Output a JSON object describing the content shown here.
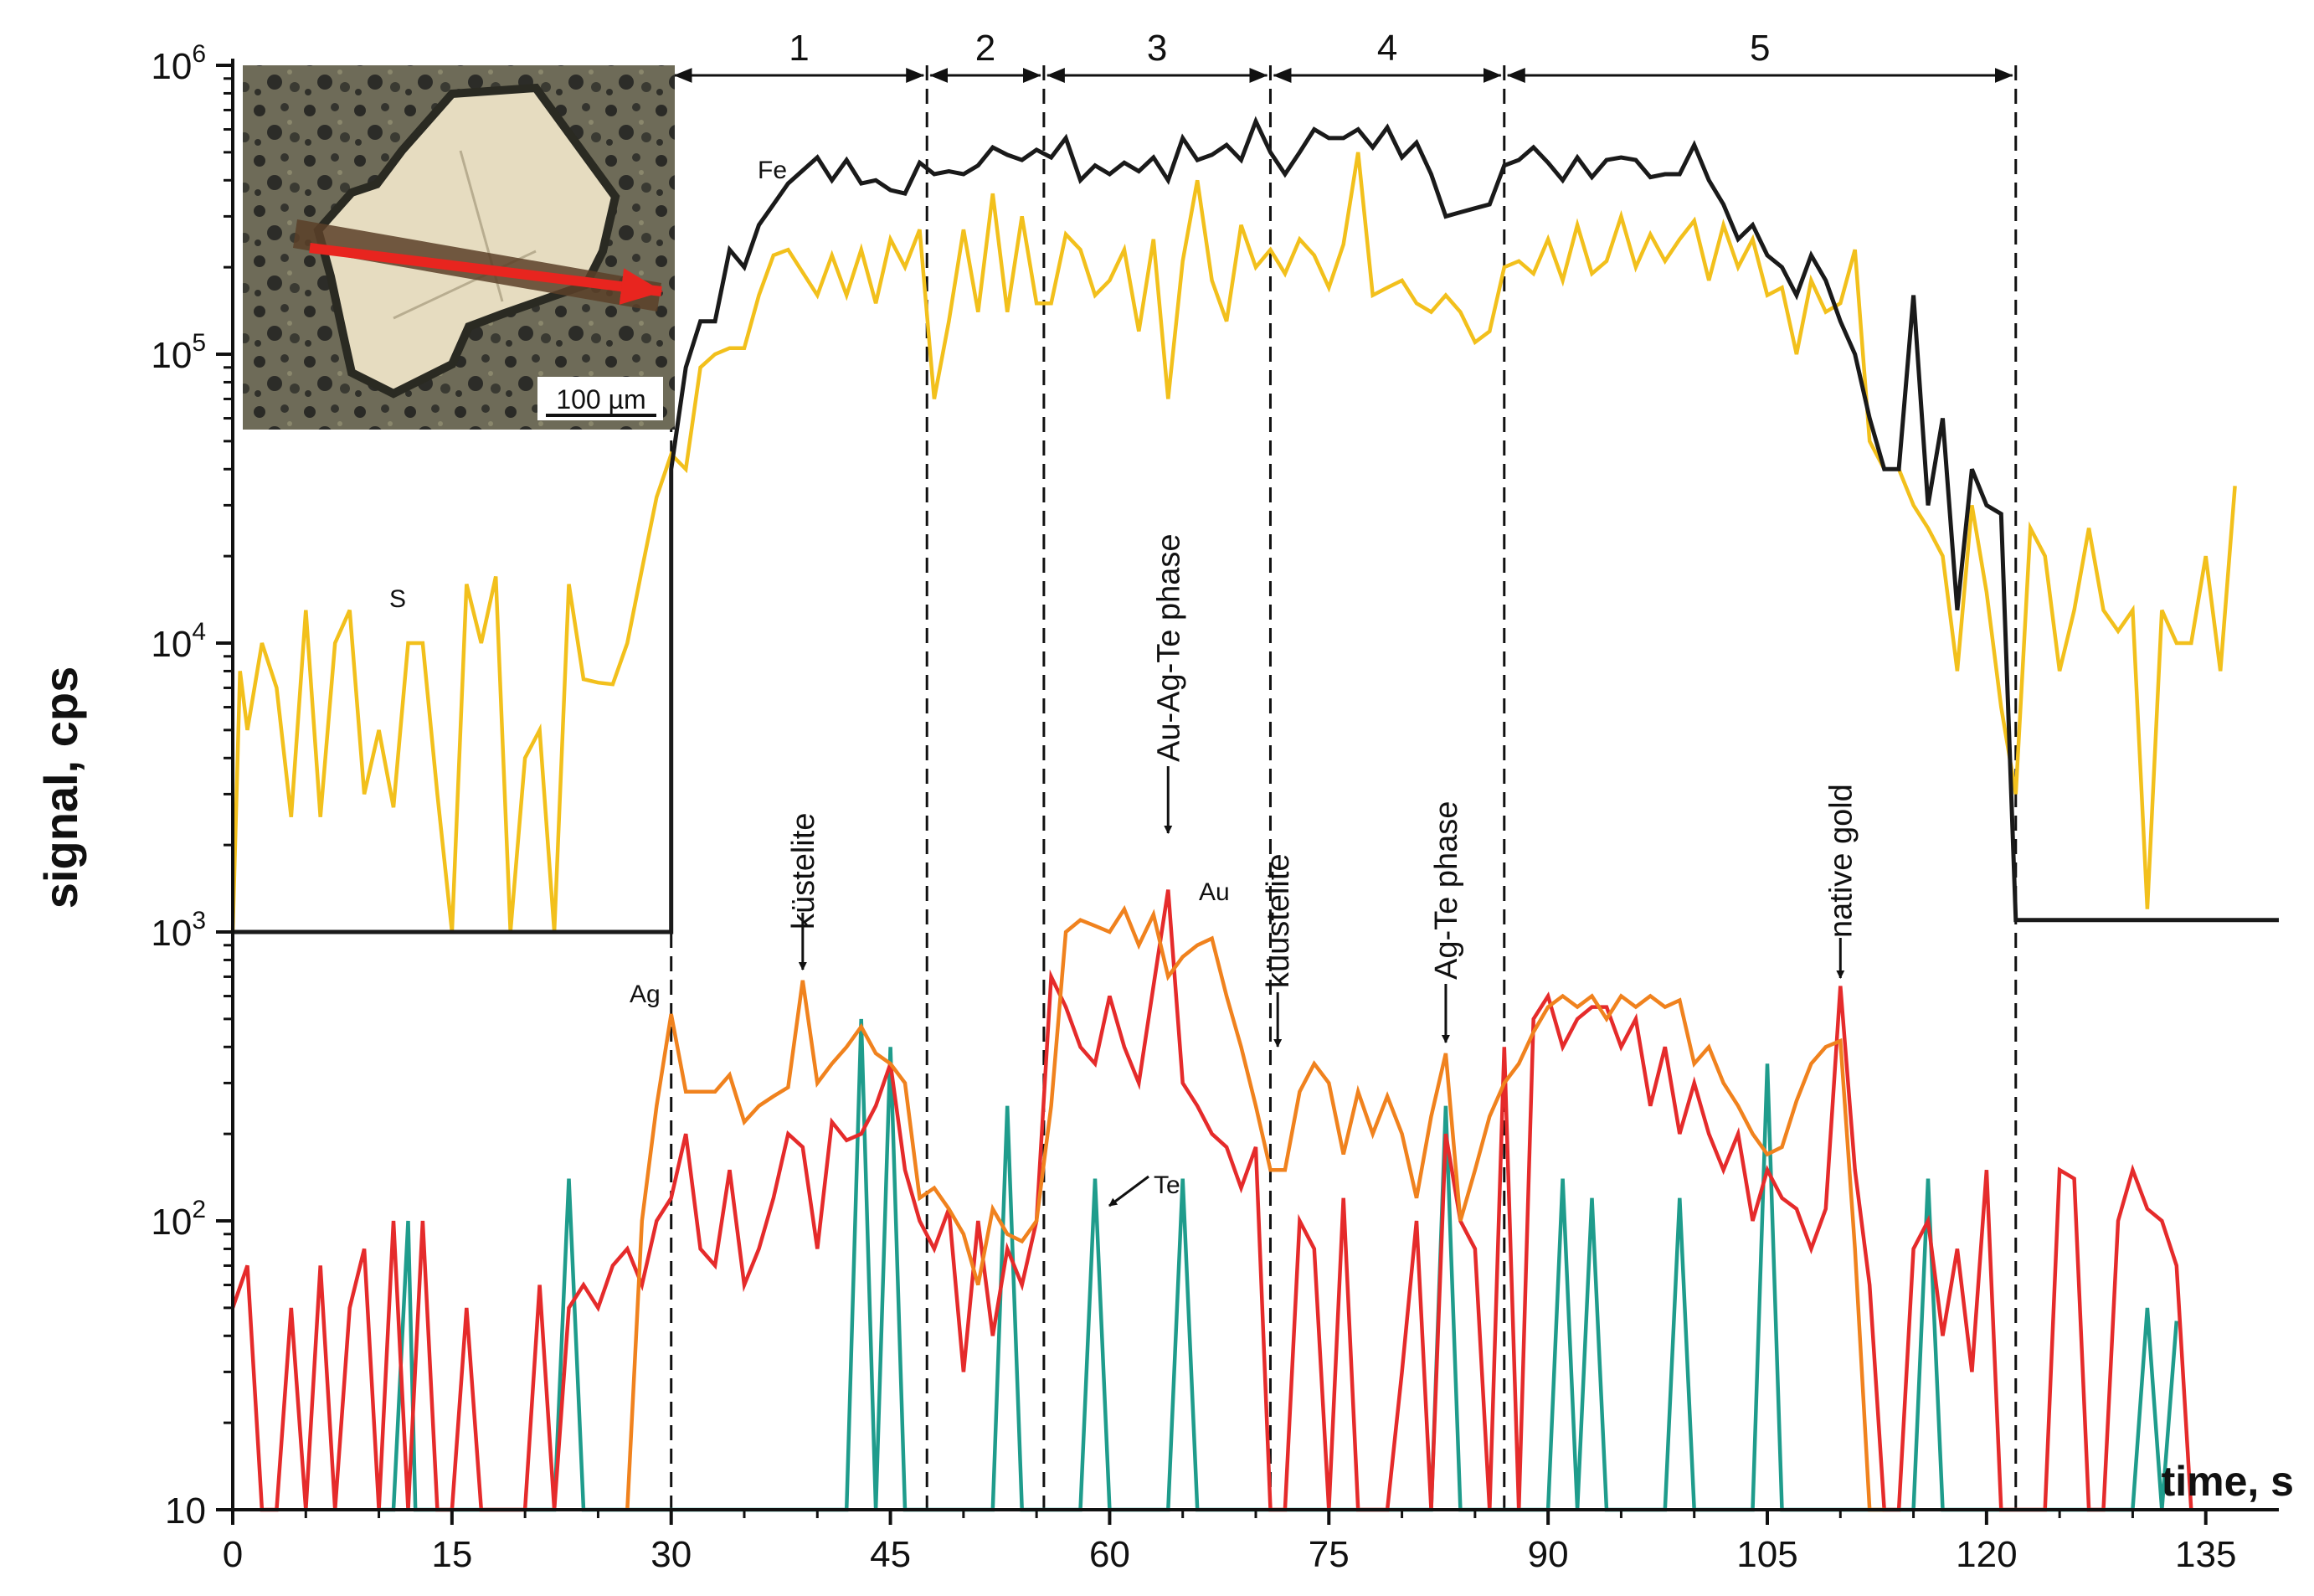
{
  "chart_data": {
    "type": "line",
    "xlabel": "time, s",
    "ylabel": "signal, cps",
    "y_scale": "log",
    "xlim": [
      0,
      140
    ],
    "ylim": [
      10,
      1000000
    ],
    "x_ticks": [
      0,
      15,
      30,
      45,
      60,
      75,
      90,
      105,
      120,
      135
    ],
    "x_tick_labels": [
      "0",
      "15",
      "30",
      "45",
      "60",
      "75",
      "90",
      "105",
      "120",
      "135"
    ],
    "y_ticks": [
      {
        "base": "10",
        "exp": ""
      },
      {
        "base": "10",
        "exp": "2"
      },
      {
        "base": "10",
        "exp": "3"
      },
      {
        "base": "10",
        "exp": "4"
      },
      {
        "base": "10",
        "exp": "5"
      },
      {
        "base": "10",
        "exp": "6"
      }
    ],
    "segment_boundaries": [
      30,
      47.5,
      55.5,
      71,
      87,
      122
    ],
    "segments": [
      {
        "label": "1",
        "from": 30,
        "to": 47.5
      },
      {
        "label": "2",
        "from": 47.5,
        "to": 55.5
      },
      {
        "label": "3",
        "from": 55.5,
        "to": 71
      },
      {
        "label": "4",
        "from": 71,
        "to": 87
      },
      {
        "label": "5",
        "from": 87,
        "to": 122
      }
    ],
    "inset": {
      "scale_bar_label": "100 µm"
    },
    "colors": {
      "Fe": "#1a1a1a",
      "S": "#f2c01c",
      "Ag": "#f0821e",
      "Au": "#e52b2b",
      "Te": "#1f9c8c",
      "arrow": "#e8251f"
    },
    "series": [
      {
        "name": "Fe",
        "x": [
          0,
          30,
          30,
          31,
          32,
          33,
          34,
          35,
          36,
          37,
          38,
          40,
          41,
          42,
          43,
          44,
          45,
          46,
          47,
          48,
          49,
          50,
          51,
          52,
          53,
          54,
          55,
          56,
          57,
          58,
          59,
          60,
          61,
          62,
          63,
          64,
          65,
          66,
          67,
          68,
          69,
          70,
          71,
          72,
          73,
          74,
          75,
          76,
          77,
          78,
          79,
          80,
          81,
          82,
          83,
          84,
          85,
          86,
          87,
          88,
          89,
          90,
          91,
          92,
          93,
          94,
          95,
          96,
          97,
          98,
          99,
          100,
          101,
          102,
          103,
          104,
          105,
          106,
          107,
          108,
          109,
          110,
          111,
          112,
          113,
          114,
          115,
          116,
          117,
          118,
          119,
          120,
          121,
          122,
          122,
          140
        ],
        "values": [
          1000,
          1000,
          40000,
          90000,
          130000,
          130000,
          230000,
          200000,
          280000,
          330000,
          390000,
          480000,
          400000,
          470000,
          390000,
          400000,
          370000,
          360000,
          460000,
          420000,
          430000,
          420000,
          450000,
          520000,
          490000,
          470000,
          510000,
          480000,
          560000,
          400000,
          450000,
          420000,
          460000,
          430000,
          480000,
          400000,
          560000,
          470000,
          490000,
          530000,
          470000,
          640000,
          500000,
          420000,
          500000,
          600000,
          560000,
          560000,
          600000,
          520000,
          610000,
          480000,
          540000,
          420000,
          300000,
          310000,
          320000,
          330000,
          450000,
          470000,
          520000,
          460000,
          400000,
          480000,
          410000,
          470000,
          480000,
          470000,
          410000,
          420000,
          420000,
          530000,
          400000,
          330000,
          250000,
          280000,
          220000,
          200000,
          160000,
          220000,
          180000,
          130000,
          100000,
          60000,
          40000,
          40000,
          160000,
          30000,
          60000,
          13000,
          40000,
          30000,
          28000,
          1100,
          1100,
          1100
        ]
      },
      {
        "name": "S",
        "x": [
          0,
          0.5,
          1,
          2,
          3,
          4,
          5,
          6,
          7,
          8,
          9,
          10,
          11,
          12,
          13,
          14,
          15,
          16,
          17,
          18,
          19,
          20,
          21,
          22,
          23,
          24,
          25,
          26,
          27,
          28,
          29,
          30,
          31,
          32,
          33,
          34,
          35,
          36,
          37,
          38,
          40,
          41,
          42,
          43,
          44,
          45,
          46,
          47,
          48,
          49,
          50,
          51,
          52,
          53,
          54,
          55,
          56,
          57,
          58,
          59,
          60,
          61,
          62,
          63,
          64,
          65,
          66,
          67,
          68,
          69,
          70,
          71,
          72,
          73,
          74,
          75,
          76,
          77,
          78,
          79,
          80,
          81,
          82,
          83,
          84,
          85,
          86,
          87,
          88,
          89,
          90,
          91,
          92,
          93,
          94,
          95,
          96,
          97,
          98,
          99,
          100,
          101,
          102,
          103,
          104,
          105,
          106,
          107,
          108,
          109,
          110,
          111,
          112,
          113,
          114,
          115,
          116,
          117,
          118,
          119,
          120,
          121,
          122,
          123,
          124,
          125,
          126,
          127,
          128,
          129,
          130,
          131,
          132,
          133,
          134,
          135,
          136,
          137
        ],
        "values": [
          1000,
          8000,
          5000,
          10000,
          7000,
          2500,
          13000,
          2500,
          10000,
          13000,
          3000,
          5000,
          2700,
          10000,
          10000,
          3000,
          1000,
          16000,
          10000,
          17000,
          1000,
          4000,
          5000,
          1000,
          16000,
          7500,
          7300,
          7200,
          10000,
          18000,
          32000,
          45000,
          40000,
          90000,
          100000,
          105000,
          105000,
          160000,
          220000,
          230000,
          160000,
          220000,
          160000,
          230000,
          150000,
          250000,
          200000,
          270000,
          70000,
          130000,
          270000,
          140000,
          360000,
          140000,
          300000,
          150000,
          150000,
          260000,
          230000,
          160000,
          180000,
          230000,
          120000,
          250000,
          70000,
          210000,
          400000,
          180000,
          130000,
          280000,
          200000,
          230000,
          190000,
          250000,
          220000,
          170000,
          240000,
          500000,
          160000,
          170000,
          180000,
          150000,
          140000,
          160000,
          140000,
          110000,
          120000,
          200000,
          210000,
          190000,
          250000,
          180000,
          280000,
          190000,
          210000,
          300000,
          200000,
          260000,
          210000,
          250000,
          290000,
          180000,
          280000,
          200000,
          250000,
          160000,
          170000,
          100000,
          180000,
          140000,
          150000,
          230000,
          50000,
          40000,
          40000,
          30000,
          25000,
          20000,
          8000,
          30000,
          15000,
          6000,
          3000,
          25000,
          20000,
          8000,
          13000,
          25000,
          13000,
          11000,
          13000,
          1200,
          13000,
          10000,
          10000,
          20000,
          8000,
          35000
        ]
      },
      {
        "name": "Ag",
        "x": [
          27,
          28,
          29,
          30,
          31,
          32,
          33,
          34,
          35,
          36,
          37,
          38,
          39,
          40,
          41,
          42,
          43,
          44,
          45,
          46,
          47,
          48,
          49,
          50,
          51,
          52,
          53,
          54,
          55,
          56,
          57,
          58,
          59,
          60,
          61,
          62,
          63,
          64,
          65,
          66,
          67,
          68,
          69,
          70,
          71,
          72,
          73,
          74,
          75,
          76,
          77,
          78,
          79,
          80,
          81,
          82,
          83,
          84,
          85,
          86,
          87,
          88,
          89,
          90,
          91,
          92,
          93,
          94,
          95,
          96,
          97,
          98,
          99,
          100,
          101,
          102,
          103,
          104,
          105,
          106,
          107,
          108,
          109,
          110,
          111,
          112,
          113
        ],
        "values": [
          10,
          100,
          250,
          520,
          280,
          280,
          280,
          320,
          220,
          250,
          270,
          290,
          680,
          300,
          350,
          400,
          470,
          380,
          350,
          300,
          120,
          130,
          110,
          90,
          60,
          110,
          90,
          85,
          100,
          250,
          1000,
          1100,
          1050,
          1000,
          1200,
          900,
          1150,
          700,
          820,
          900,
          950,
          600,
          400,
          250,
          150,
          150,
          280,
          350,
          300,
          170,
          280,
          200,
          270,
          200,
          120,
          230,
          380,
          100,
          150,
          230,
          300,
          350,
          450,
          550,
          600,
          550,
          600,
          500,
          600,
          550,
          600,
          550,
          580,
          350,
          400,
          300,
          250,
          200,
          170,
          180,
          260,
          350,
          400,
          420,
          80,
          10,
          10
        ]
      },
      {
        "name": "Au",
        "x": [
          0,
          1,
          2,
          3,
          4,
          5,
          6,
          7,
          8,
          9,
          10,
          11,
          12,
          13,
          14,
          15,
          16,
          17,
          18,
          19,
          20,
          21,
          22,
          23,
          24,
          25,
          26,
          27,
          28,
          29,
          30,
          31,
          32,
          33,
          34,
          35,
          36,
          37,
          38,
          39,
          40,
          41,
          42,
          43,
          44,
          45,
          46,
          47,
          48,
          49,
          50,
          51,
          52,
          53,
          54,
          55,
          56,
          57,
          58,
          59,
          60,
          61,
          62,
          63,
          64,
          65,
          66,
          67,
          68,
          69,
          70,
          71,
          72,
          73,
          74,
          75,
          76,
          77,
          78,
          79,
          80,
          81,
          82,
          83,
          84,
          85,
          86,
          87,
          88,
          89,
          90,
          91,
          92,
          93,
          94,
          95,
          96,
          97,
          98,
          99,
          100,
          101,
          102,
          103,
          104,
          105,
          106,
          107,
          108,
          109,
          110,
          111,
          112,
          113,
          114,
          115,
          116,
          117,
          118,
          119,
          120,
          121,
          122,
          123,
          124,
          125,
          126,
          127,
          128,
          129,
          130,
          131,
          132,
          133,
          134
        ],
        "values": [
          50,
          70,
          10,
          10,
          50,
          10,
          70,
          10,
          50,
          80,
          10,
          100,
          10,
          100,
          10,
          10,
          50,
          10,
          10,
          10,
          10,
          60,
          10,
          50,
          60,
          50,
          70,
          80,
          60,
          100,
          120,
          200,
          80,
          70,
          150,
          60,
          80,
          120,
          200,
          180,
          80,
          220,
          190,
          200,
          250,
          350,
          150,
          100,
          80,
          110,
          30,
          100,
          40,
          80,
          60,
          100,
          700,
          550,
          400,
          350,
          600,
          400,
          300,
          650,
          1400,
          300,
          250,
          200,
          180,
          130,
          180,
          10,
          10,
          100,
          80,
          10,
          120,
          10,
          10,
          10,
          30,
          100,
          10,
          200,
          100,
          80,
          10,
          400,
          10,
          500,
          600,
          400,
          500,
          550,
          550,
          400,
          500,
          250,
          400,
          200,
          300,
          200,
          150,
          200,
          100,
          150,
          120,
          110,
          80,
          110,
          650,
          150,
          60,
          10,
          10,
          80,
          100,
          40,
          80,
          30,
          150,
          10,
          10,
          10,
          10,
          150,
          140,
          10,
          10,
          100,
          150,
          110,
          100,
          70,
          10
        ]
      },
      {
        "name": "Te",
        "x": [
          10,
          11,
          12,
          12.5,
          13,
          21,
          22,
          23,
          24,
          25,
          26,
          38,
          39,
          40,
          41,
          42,
          43,
          44,
          45,
          46,
          47,
          48,
          49,
          50,
          51,
          52,
          53,
          54,
          55,
          56,
          57,
          58,
          59,
          60,
          61,
          62,
          63,
          64,
          65,
          66,
          67,
          68,
          69,
          70,
          77,
          78,
          79,
          80,
          81,
          82,
          83,
          84,
          85,
          86,
          87,
          88,
          89,
          90,
          91,
          92,
          93,
          94,
          95,
          96,
          97,
          98,
          99,
          100,
          101,
          102,
          103,
          104,
          105,
          106,
          107,
          108,
          109,
          110,
          111,
          112,
          113,
          114,
          115,
          116,
          117,
          118,
          119,
          120,
          121,
          130,
          131,
          132,
          133
        ],
        "values": [
          10,
          10,
          100,
          10,
          10,
          10,
          10,
          140,
          10,
          10,
          10,
          10,
          10,
          10,
          10,
          10,
          500,
          10,
          400,
          10,
          10,
          10,
          10,
          10,
          10,
          10,
          250,
          10,
          10,
          10,
          10,
          10,
          140,
          10,
          10,
          10,
          10,
          10,
          140,
          10,
          10,
          10,
          10,
          10,
          10,
          10,
          10,
          10,
          10,
          10,
          250,
          10,
          10,
          10,
          10,
          10,
          10,
          10,
          140,
          10,
          120,
          10,
          10,
          10,
          10,
          10,
          120,
          10,
          10,
          10,
          10,
          10,
          350,
          10,
          10,
          10,
          10,
          10,
          10,
          10,
          10,
          10,
          10,
          140,
          10,
          10,
          10,
          10,
          10,
          10,
          50,
          10,
          45
        ]
      }
    ],
    "series_labels": [
      {
        "text": "Fe",
        "x": 39.5,
        "y": 390000
      },
      {
        "text": "S",
        "x": 12.2,
        "y": 13000
      },
      {
        "text": "Ag",
        "x": 29.5,
        "y": 620000,
        "y_override": 620
      },
      {
        "text": "Au",
        "x": 68,
        "y": 1400
      },
      {
        "text": "Te",
        "x": 63.5,
        "y": 140
      }
    ],
    "annotations": [
      {
        "text": "küstelite",
        "x": 39,
        "y": 680
      },
      {
        "text": "Au-Ag-Te phase",
        "x": 64,
        "y": 1400
      },
      {
        "text": "küustelite",
        "x": 71.5,
        "y": 350
      },
      {
        "text": "Ag-Te phase",
        "x": 83,
        "y": 400
      },
      {
        "text": "native gold",
        "x": 110,
        "y": 650
      }
    ]
  }
}
